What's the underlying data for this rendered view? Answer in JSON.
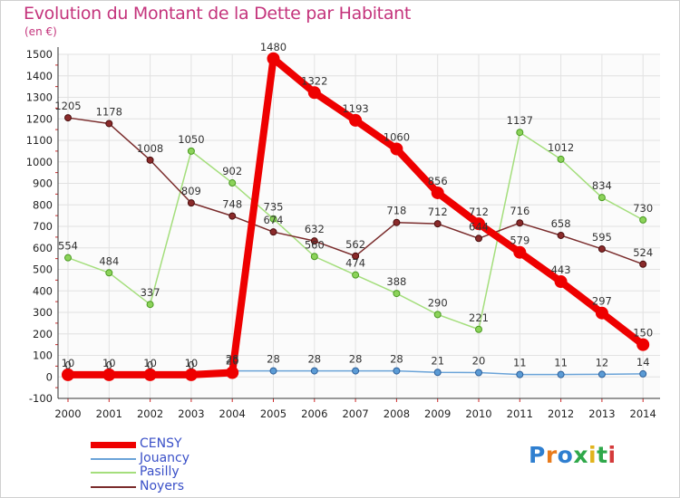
{
  "title": "Evolution du Montant de la Dette par Habitant",
  "unit": "(en €)",
  "logo": {
    "text": "Proxiti",
    "colors": [
      "#2f7fd0",
      "#e87b1c",
      "#2f7fd0",
      "#2fa84a",
      "#e2b31c",
      "#2fa84a",
      "#d43a3a"
    ]
  },
  "chart_data": {
    "type": "line",
    "x": [
      "2000",
      "2001",
      "2002",
      "2003",
      "2004",
      "2005",
      "2006",
      "2007",
      "2008",
      "2009",
      "2010",
      "2011",
      "2012",
      "2013",
      "2014"
    ],
    "ylim": [
      -100,
      1500
    ],
    "yticks": [
      -100,
      0,
      100,
      200,
      300,
      400,
      500,
      600,
      700,
      800,
      900,
      1000,
      1100,
      1200,
      1300,
      1400,
      1500
    ],
    "grid": true,
    "legend_placement": "bottom-left",
    "series": [
      {
        "name": "CENSY",
        "color": "#ee0000",
        "values": [
          10,
          10,
          10,
          10,
          20,
          1480,
          1322,
          1193,
          1060,
          856,
          712,
          579,
          443,
          297,
          150
        ],
        "labels": [
          "10",
          "10",
          "10",
          "10",
          "20",
          "1480",
          "1322",
          "1193",
          "1060",
          "856",
          "712",
          "579",
          "443",
          "297",
          "150"
        ]
      },
      {
        "name": "Jouancy",
        "color": "#5b9bd5",
        "values": [
          0,
          0,
          0,
          0,
          28,
          28,
          28,
          28,
          28,
          21,
          20,
          11,
          11,
          12,
          14
        ],
        "labels": [
          "0",
          "0",
          "0",
          "0",
          "28",
          "28",
          "28",
          "28",
          "28",
          "21",
          "20",
          "11",
          "11",
          "12",
          "14"
        ]
      },
      {
        "name": "Pasilly",
        "color": "#8cd35a",
        "values": [
          554,
          484,
          337,
          1050,
          902,
          735,
          560,
          474,
          388,
          290,
          221,
          1137,
          1012,
          834,
          730
        ],
        "labels": [
          "554",
          "484",
          "337",
          "1050",
          "902",
          "735",
          "560",
          "474",
          "388",
          "290",
          "221",
          "1137",
          "1012",
          "834",
          "730"
        ]
      },
      {
        "name": "Noyers",
        "color": "#7a2424",
        "values": [
          1205,
          1178,
          1008,
          809,
          748,
          674,
          632,
          562,
          718,
          712,
          644,
          716,
          658,
          595,
          524
        ],
        "labels": [
          "1205",
          "1178",
          "1008",
          "809",
          "748",
          "674",
          "632",
          "562",
          "718",
          "712",
          "644",
          "716",
          "658",
          "595",
          "524"
        ]
      }
    ]
  }
}
